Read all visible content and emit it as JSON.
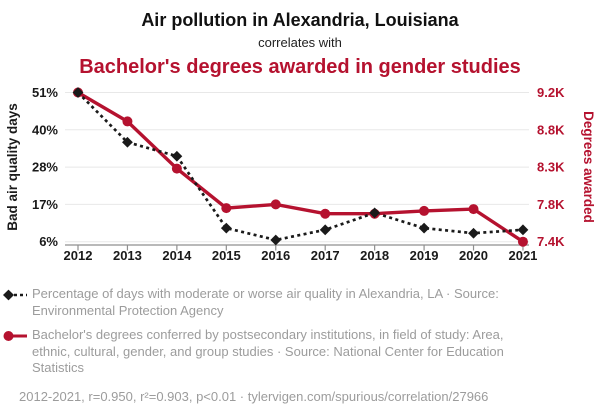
{
  "header": {
    "title": "Air pollution in Alexandria, Louisiana",
    "connector": "correlates with",
    "subtitle": "Bachelor's degrees awarded in gender studies"
  },
  "colors": {
    "red": "#b5122f",
    "black": "#1a1a1a",
    "grid": "#e8e8e8",
    "axis": "#8f8f8f",
    "legend_gray": "#9c9c9c"
  },
  "chart_data": {
    "type": "line",
    "title": "Air pollution in Alexandria, Louisiana correlates with Bachelor's degrees awarded in gender studies",
    "x": [
      2012,
      2013,
      2014,
      2015,
      2016,
      2017,
      2018,
      2019,
      2020,
      2021
    ],
    "series": [
      {
        "name": "Percentage of days with moderate or worse air quality in Alexandria, LA",
        "axis": "left",
        "unit": "%",
        "color": "#1a1a1a",
        "style": "dashed line, diamond markers",
        "values": [
          51,
          36,
          31.5,
          10,
          6.5,
          9.5,
          14.5,
          10,
          8.5,
          9.5
        ]
      },
      {
        "name": "Bachelor's degrees conferred in Area, ethnic, cultural, gender, and group studies",
        "axis": "right",
        "unit": "K degrees",
        "color": "#b5122f",
        "style": "solid line, circle markers",
        "values": [
          9.2,
          8.89,
          8.28,
          7.76,
          7.8,
          7.7,
          7.7,
          7.73,
          7.75,
          7.4
        ]
      }
    ],
    "left_axis": {
      "label": "Bad air quality days",
      "ticks": [
        "51%",
        "40%",
        "28%",
        "17%",
        "6%"
      ],
      "tick_values": [
        51,
        40,
        28,
        17,
        6
      ]
    },
    "right_axis": {
      "label": "Degrees awarded",
      "ticks": [
        "9.2K",
        "8.8K",
        "8.3K",
        "7.8K",
        "7.4K"
      ],
      "tick_values": [
        9.2,
        8.8,
        8.3,
        7.8,
        7.4
      ]
    },
    "grid": true,
    "legend_position": "bottom"
  },
  "legend": [
    {
      "marker": "black-diamond-dashed",
      "text": "Percentage of days with moderate or worse air quality in Alexandria, LA · Source: Environmental Protection Agency"
    },
    {
      "marker": "red-circle-solid",
      "text": "Bachelor's degrees conferred by postsecondary institutions, in field of study: Area, ethnic, cultural, gender, and group studies · Source: National Center for Education Statistics"
    }
  ],
  "footer": {
    "text": "2012-2021, r=0.950, r²=0.903, p<0.01 · tylervigen.com/spurious/correlation/27966"
  }
}
